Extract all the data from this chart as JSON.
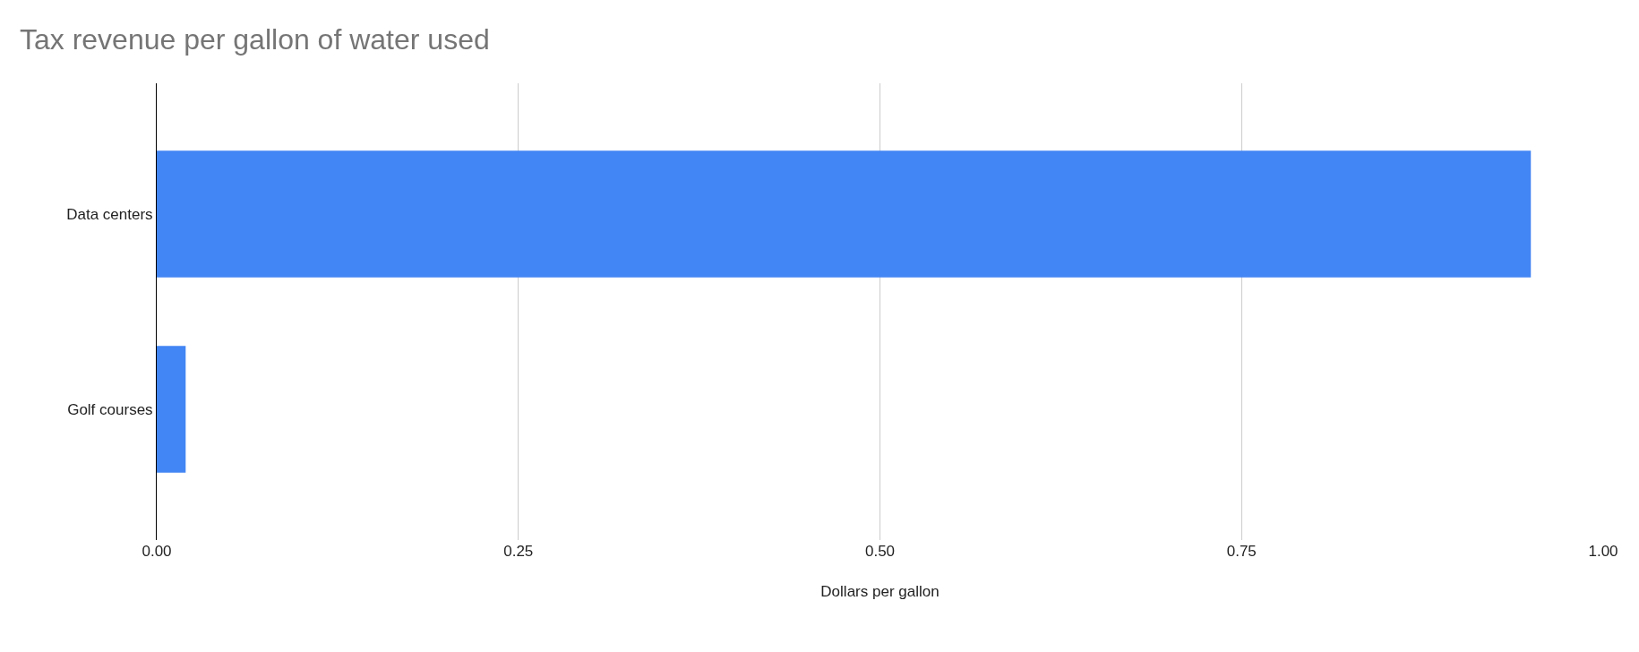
{
  "chart_data": {
    "type": "bar",
    "orientation": "horizontal",
    "title": "Tax revenue per gallon of water used",
    "xlabel": "Dollars per gallon",
    "categories": [
      "Data centers",
      "Golf courses"
    ],
    "values": [
      0.95,
      0.02
    ],
    "color": "#4285f4",
    "xlim": [
      0,
      1
    ],
    "xticks": [
      {
        "value": 0,
        "label": "0.00"
      },
      {
        "value": 0.25,
        "label": "0.25"
      },
      {
        "value": 0.5,
        "label": "0.50"
      },
      {
        "value": 0.75,
        "label": "0.75"
      },
      {
        "value": 1,
        "label": "1.00"
      }
    ],
    "grid": "x"
  }
}
